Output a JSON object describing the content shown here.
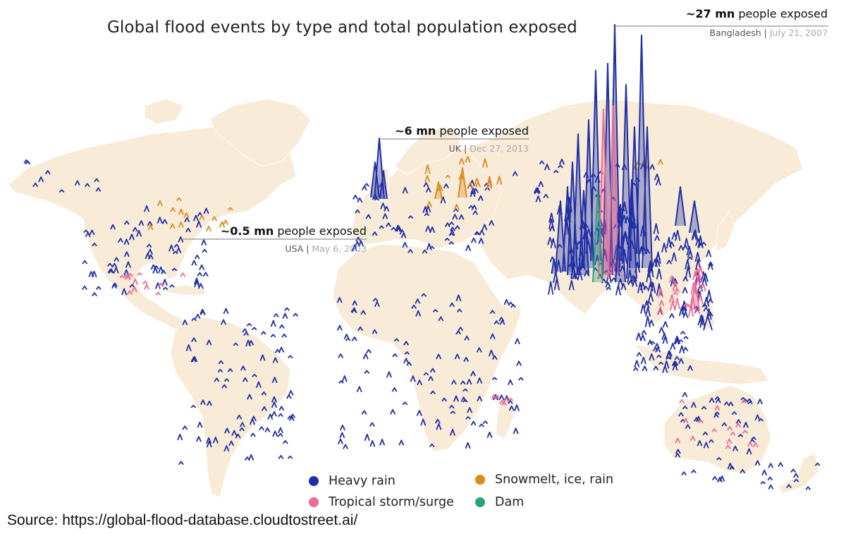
{
  "title": "Global flood events by type and total population exposed",
  "colors": {
    "heavy_rain": "#1f2fa6",
    "tropical_storm": "#f06a93",
    "snowmelt": "#de8a1d",
    "dam": "#27a37e",
    "land": "#f8ecd8",
    "ocean": "#ffffff"
  },
  "callouts": [
    {
      "value": "~27 mn",
      "unit": " people exposed",
      "country": "Bangladesh",
      "separator": " | ",
      "date": "July 21, 2007"
    },
    {
      "value": "~6 mn",
      "unit": " people exposed",
      "country": "UK",
      "separator": " | ",
      "date": "Dec 27, 2013"
    },
    {
      "value": "~0.5 mn",
      "unit": " people exposed",
      "country": "USA",
      "separator": " | ",
      "date": "May 6, 2003"
    }
  ],
  "legend": [
    {
      "label": "Heavy rain",
      "color": "#1f2fa6"
    },
    {
      "label": "Snowmelt, ice, rain",
      "color": "#de8a1d"
    },
    {
      "label": "Tropical storm/surge",
      "color": "#f06a93"
    },
    {
      "label": "Dam",
      "color": "#27a37e"
    }
  ],
  "source": "Source: https://global-flood-database.cloudtostreet.ai/"
}
